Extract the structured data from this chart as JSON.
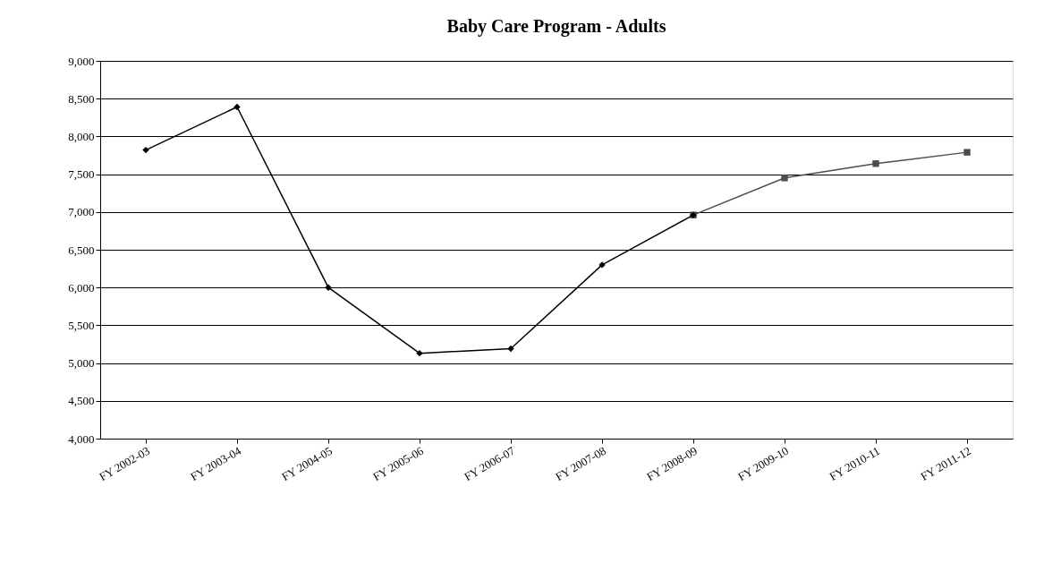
{
  "chart_data": {
    "type": "line",
    "title": "Baby Care Program - Adults",
    "categories": [
      "FY 2002-03",
      "FY 2003-04",
      "FY 2004-05",
      "FY 2005-06",
      "FY 2006-07",
      "FY 2007-08",
      "FY 2008-09",
      "FY 2009-10",
      "FY 2010-11",
      "FY 2011-12"
    ],
    "series": [
      {
        "color": "#4d4d4d",
        "marker": "square",
        "values": [
          null,
          null,
          null,
          null,
          null,
          null,
          6960,
          7450,
          7640,
          7790
        ]
      },
      {
        "color": "#000000",
        "marker": "diamond",
        "values": [
          7820,
          8390,
          6000,
          5130,
          5190,
          6300,
          6960,
          null,
          null,
          null
        ]
      }
    ],
    "ylim": [
      4000,
      9000
    ],
    "yticks": [
      {
        "value": 4000,
        "label": "4,000"
      },
      {
        "value": 4500,
        "label": "4,500"
      },
      {
        "value": 5000,
        "label": "5,000"
      },
      {
        "value": 5500,
        "label": "5,500"
      },
      {
        "value": 6000,
        "label": "6,000"
      },
      {
        "value": 6500,
        "label": "6,500"
      },
      {
        "value": 7000,
        "label": "7,000"
      },
      {
        "value": 7500,
        "label": "7,500"
      },
      {
        "value": 8000,
        "label": "8,000"
      },
      {
        "value": 8500,
        "label": "8,500"
      },
      {
        "value": 9000,
        "label": "9,000"
      }
    ],
    "grid": "y"
  }
}
